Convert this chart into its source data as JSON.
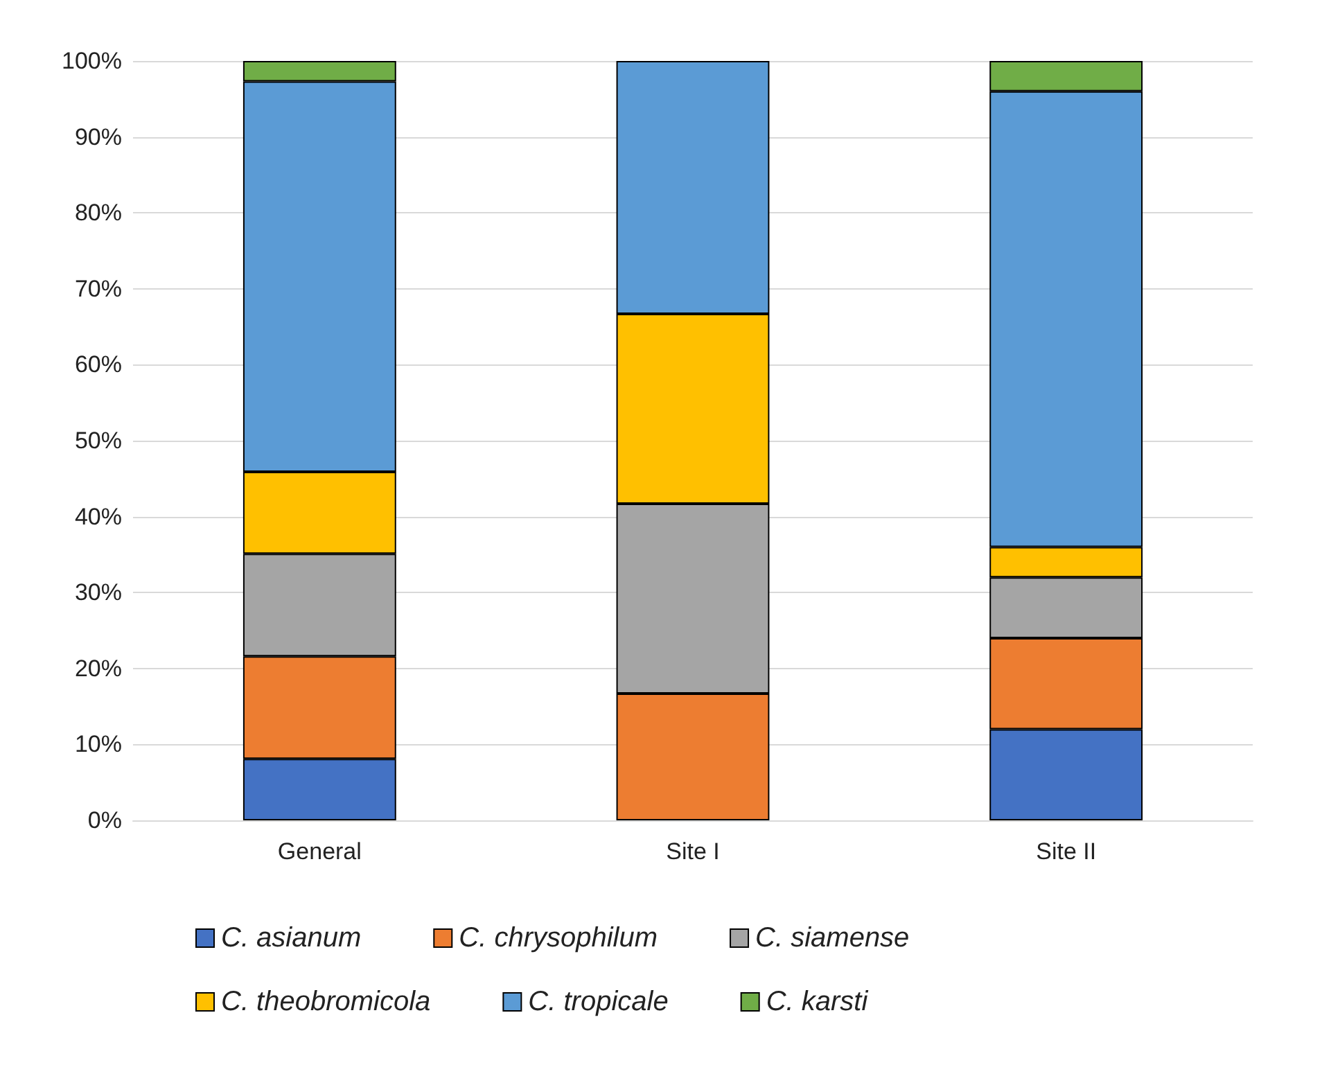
{
  "chart_data": {
    "type": "bar",
    "stacked": true,
    "categories": [
      "General",
      "Site I",
      "Site II"
    ],
    "series": [
      {
        "name": "C. asianum",
        "color": "#4472c4",
        "values": [
          8.1,
          0,
          12
        ]
      },
      {
        "name": "C. chrysophilum",
        "color": "#ed7d31",
        "values": [
          13.5,
          16.7,
          12
        ]
      },
      {
        "name": "C. siamense",
        "color": "#a5a5a5",
        "values": [
          13.5,
          25,
          8
        ]
      },
      {
        "name": "C. theobromicola",
        "color": "#ffc000",
        "values": [
          10.8,
          25,
          4
        ]
      },
      {
        "name": "C. tropicale",
        "color": "#5b9bd5",
        "values": [
          51.4,
          33.3,
          60
        ]
      },
      {
        "name": "C. karsti",
        "color": "#70ad47",
        "values": [
          2.7,
          0,
          4
        ]
      }
    ],
    "ylim": [
      0,
      100
    ],
    "yticks": [
      {
        "value": 0,
        "label": "0%"
      },
      {
        "value": 10,
        "label": "10%"
      },
      {
        "value": 20,
        "label": "20%"
      },
      {
        "value": 30,
        "label": "30%"
      },
      {
        "value": 40,
        "label": "40%"
      },
      {
        "value": 50,
        "label": "50%"
      },
      {
        "value": 60,
        "label": "60%"
      },
      {
        "value": 70,
        "label": "70%"
      },
      {
        "value": 80,
        "label": "80%"
      },
      {
        "value": 90,
        "label": "90%"
      },
      {
        "value": 100,
        "label": "100%"
      }
    ],
    "grid": "y",
    "legend": "bottom"
  }
}
